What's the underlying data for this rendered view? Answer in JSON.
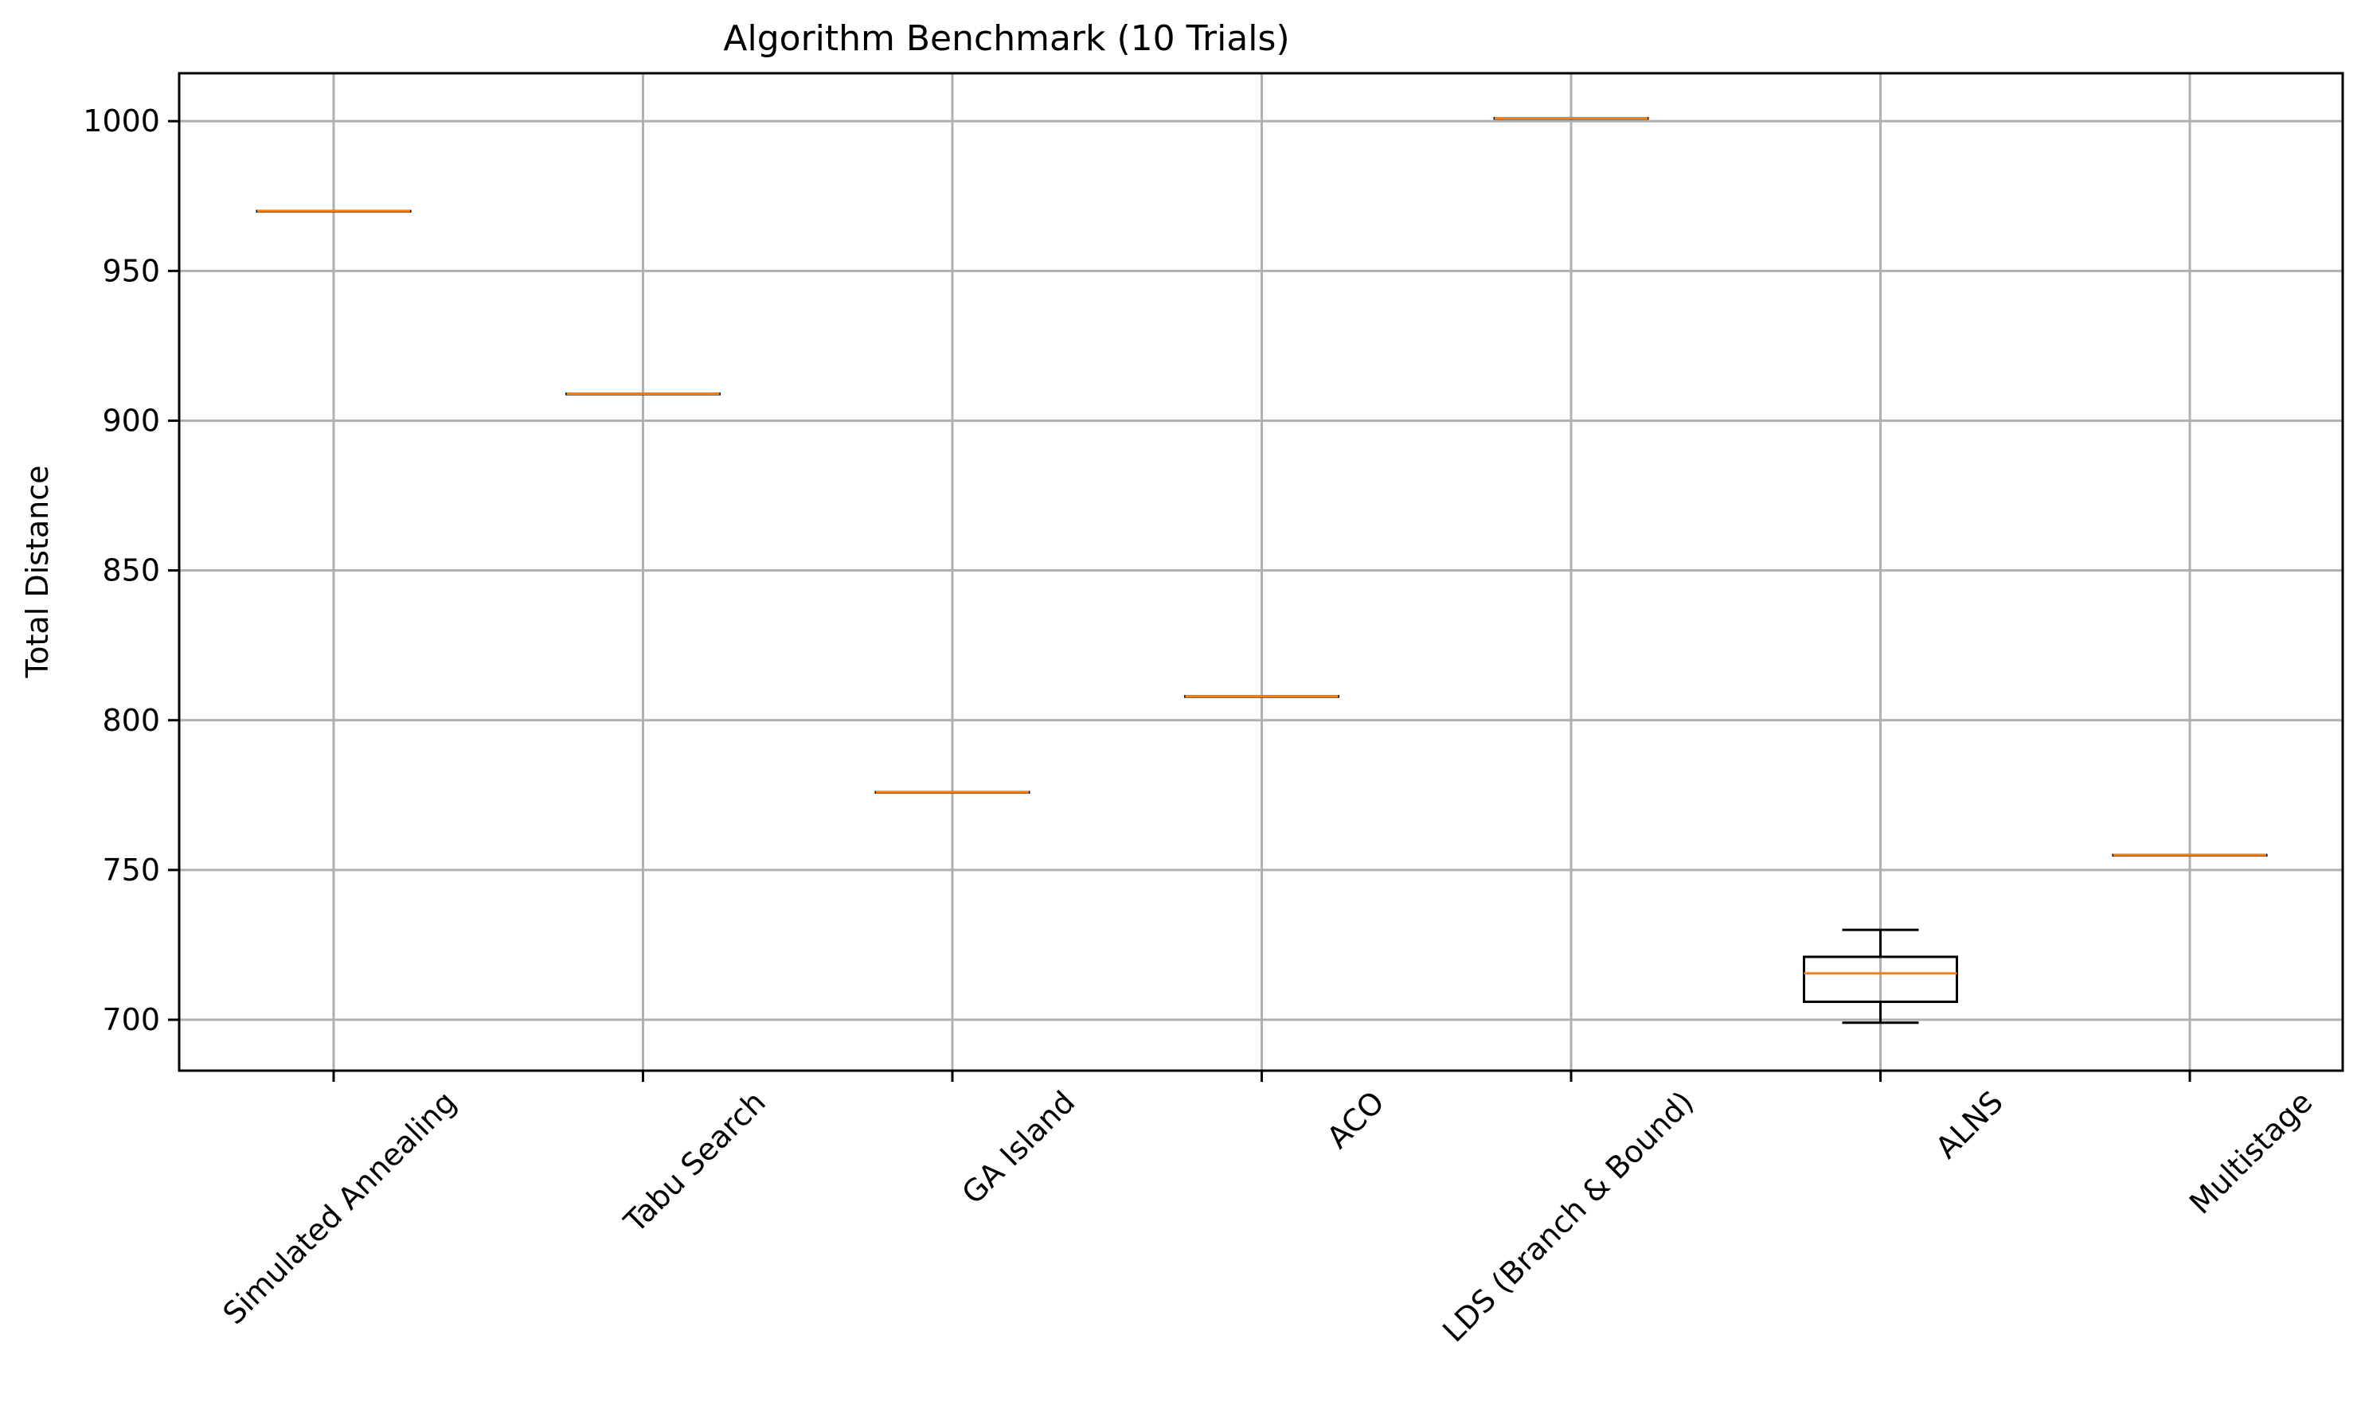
{
  "chart_data": {
    "type": "box",
    "title": "Algorithm Benchmark (10 Trials)",
    "xlabel": "",
    "ylabel": "Total Distance",
    "ylim": [
      683,
      1016
    ],
    "yticks": [
      700,
      750,
      800,
      850,
      900,
      950,
      1000
    ],
    "grid": true,
    "legend": "none",
    "categories": [
      "Simulated Annealing",
      "Tabu Search",
      "GA Island",
      "ACO",
      "LDS (Branch & Bound)",
      "ALNS",
      "Multistage"
    ],
    "boxes": [
      {
        "min": 970,
        "q1": 970,
        "median": 970,
        "q3": 970,
        "max": 970
      },
      {
        "min": 909,
        "q1": 909,
        "median": 909,
        "q3": 909,
        "max": 909
      },
      {
        "min": 776,
        "q1": 776,
        "median": 776,
        "q3": 776,
        "max": 776
      },
      {
        "min": 808,
        "q1": 808,
        "median": 808,
        "q3": 808,
        "max": 808
      },
      {
        "min": 1001,
        "q1": 1001,
        "median": 1001,
        "q3": 1001,
        "max": 1001
      },
      {
        "min": 699,
        "q1": 706,
        "median": 715.5,
        "q3": 721,
        "max": 730
      },
      {
        "min": 755,
        "q1": 755,
        "median": 755,
        "q3": 755,
        "max": 755
      }
    ],
    "colors": {
      "box": "#000000",
      "median": "#ff7f0e",
      "grid": "#b0b0b0"
    }
  }
}
